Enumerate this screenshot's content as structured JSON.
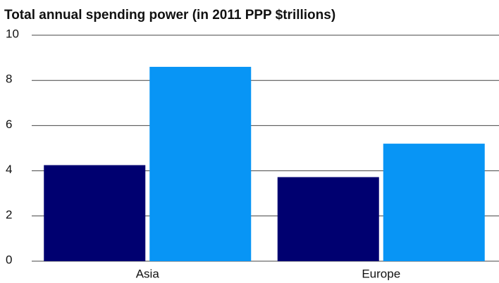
{
  "chart_data": {
    "type": "bar",
    "title": "Total annual spending power (in 2011 PPP $trillions)",
    "categories": [
      "Asia",
      "Europe"
    ],
    "series": [
      {
        "color": "#000070",
        "values": [
          4.25,
          3.72
        ]
      },
      {
        "color": "#0895f5",
        "values": [
          8.6,
          5.2
        ]
      }
    ],
    "ylim": [
      0,
      10
    ],
    "yticks": [
      0,
      2,
      4,
      6,
      8,
      10
    ],
    "grid": true
  }
}
